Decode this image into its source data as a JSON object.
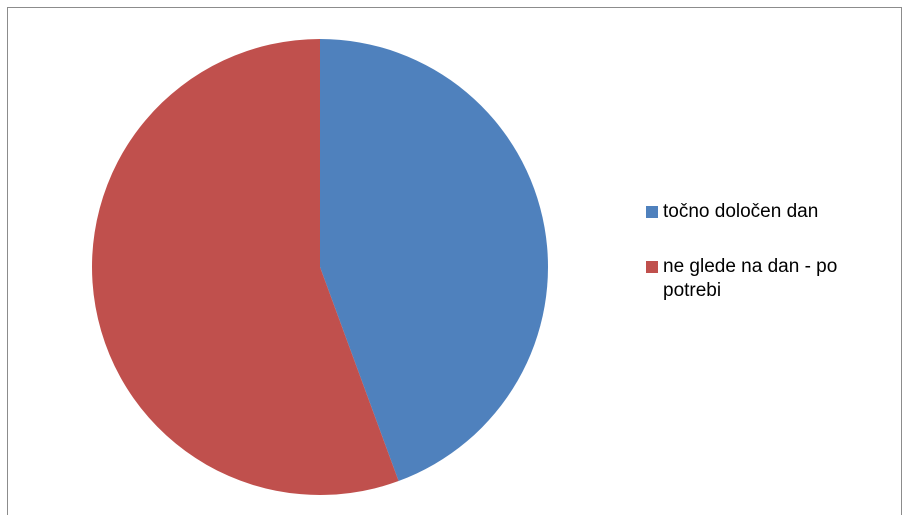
{
  "chart_data": {
    "type": "pie",
    "title": "",
    "categories": [
      "točno določen dan",
      "ne glede na dan - po potrebi"
    ],
    "values": [
      44.4,
      55.6
    ],
    "colors": [
      "#4f81bd",
      "#c0504d"
    ],
    "legend_position": "right",
    "start_angle": "12 o'clock",
    "direction": "clockwise"
  }
}
